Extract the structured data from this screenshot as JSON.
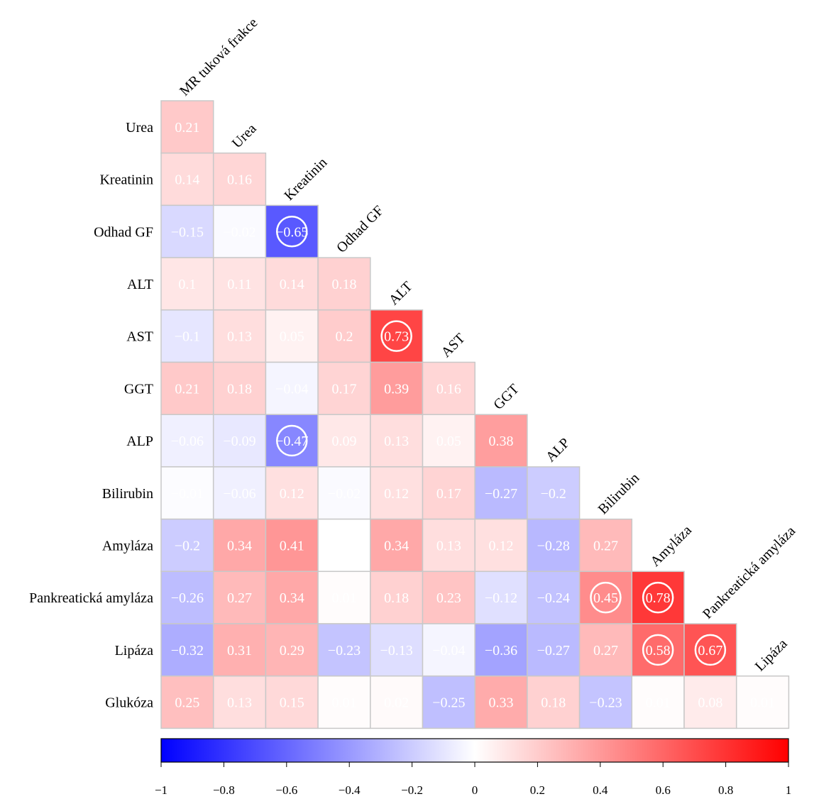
{
  "chart_data": {
    "type": "heatmap",
    "subtype": "correlation-matrix-lower",
    "variables": [
      "MR tuková frakce",
      "Urea",
      "Kreatinin",
      "Odhad GF",
      "ALT",
      "AST",
      "GGT",
      "ALP",
      "Bilirubin",
      "Amyláza",
      "Pankreatická amyláza",
      "Lipáza",
      "Glukóza"
    ],
    "row_labels": [
      "Urea",
      "Kreatinin",
      "Odhad GF",
      "ALT",
      "AST",
      "GGT",
      "ALP",
      "Bilirubin",
      "Amyláza",
      "Pankreatická amyláza",
      "Lipáza",
      "Glukóza"
    ],
    "col_labels": [
      "MR tuková frakce",
      "Urea",
      "Kreatinin",
      "Odhad GF",
      "ALT",
      "AST",
      "GGT",
      "ALP",
      "Bilirubin",
      "Amyláza",
      "Pankreatická amyláza",
      "Lipáza"
    ],
    "values": [
      [
        0.21
      ],
      [
        0.14,
        0.16
      ],
      [
        -0.15,
        -0.02,
        -0.65
      ],
      [
        0.1,
        0.11,
        0.14,
        0.18
      ],
      [
        -0.1,
        0.13,
        0.05,
        0.2,
        0.73
      ],
      [
        0.21,
        0.18,
        -0.04,
        0.17,
        0.39,
        0.16
      ],
      [
        -0.06,
        -0.09,
        -0.47,
        0.09,
        0.13,
        0.05,
        0.38
      ],
      [
        -0.01,
        -0.06,
        0.12,
        -0.02,
        0.12,
        0.17,
        -0.27,
        -0.2
      ],
      [
        -0.2,
        0.34,
        0.41,
        0.0,
        0.34,
        0.13,
        0.12,
        -0.28,
        0.27
      ],
      [
        -0.26,
        0.27,
        0.34,
        0.01,
        0.18,
        0.23,
        -0.12,
        -0.24,
        0.45,
        0.78
      ],
      [
        -0.32,
        0.31,
        0.29,
        -0.23,
        -0.13,
        -0.04,
        -0.36,
        -0.27,
        0.27,
        0.58,
        0.67
      ],
      [
        0.25,
        0.13,
        0.15,
        0.01,
        0.02,
        -0.25,
        0.33,
        0.18,
        -0.23,
        0.01,
        0.08,
        0.01
      ]
    ],
    "labels": [
      [
        "0.21"
      ],
      [
        "0.14",
        "0.16"
      ],
      [
        "−0.15",
        "−0.02",
        "−0.65"
      ],
      [
        "0.1",
        "0.11",
        "0.14",
        "0.18"
      ],
      [
        "−0.1",
        "0.13",
        "0.05",
        "0.2",
        "0.73"
      ],
      [
        "0.21",
        "0.18",
        "−0.04",
        "0.17",
        "0.39",
        "0.16"
      ],
      [
        "−0.06",
        "−0.09",
        "−0.47",
        "0.09",
        "0.13",
        "0.05",
        "0.38"
      ],
      [
        "−0.01",
        "−0.06",
        "0.12",
        "−0.02",
        "0.12",
        "0.17",
        "−0.27",
        "−0.2"
      ],
      [
        "−0.2",
        "0.34",
        "0.41",
        "",
        "0.34",
        "0.13",
        "0.12",
        "−0.28",
        "0.27"
      ],
      [
        "−0.26",
        "0.27",
        "0.34",
        "0.01",
        "0.18",
        "0.23",
        "−0.12",
        "−0.24",
        "0.45",
        "0.78"
      ],
      [
        "−0.32",
        "0.31",
        "0.29",
        "−0.23",
        "−0.13",
        "−0.04",
        "−0.36",
        "−0.27",
        "0.27",
        "0.58",
        "0.67"
      ],
      [
        "0.25",
        "0.13",
        "0.15",
        "0.01",
        "0.02",
        "−0.25",
        "0.33",
        "0.18",
        "−0.23",
        "0.01",
        "0.08",
        "0.01"
      ]
    ],
    "circled_threshold": 0.45,
    "colorbar": {
      "range": [
        -1,
        1
      ],
      "ticks": [
        -1,
        -0.8,
        -0.6,
        -0.4,
        -0.2,
        0,
        0.2,
        0.4,
        0.6,
        0.8,
        1
      ],
      "tick_labels": [
        "−1",
        "−0.8",
        "−0.6",
        "−0.4",
        "−0.2",
        "0",
        "0.2",
        "0.4",
        "0.6",
        "0.8",
        "1"
      ],
      "colors": {
        "low": "#0000ff",
        "mid": "#ffffff",
        "high": "#ff0000"
      }
    },
    "title": "",
    "xlabel": "",
    "ylabel": "",
    "legend": "colorbar-bottom",
    "grid": true
  }
}
